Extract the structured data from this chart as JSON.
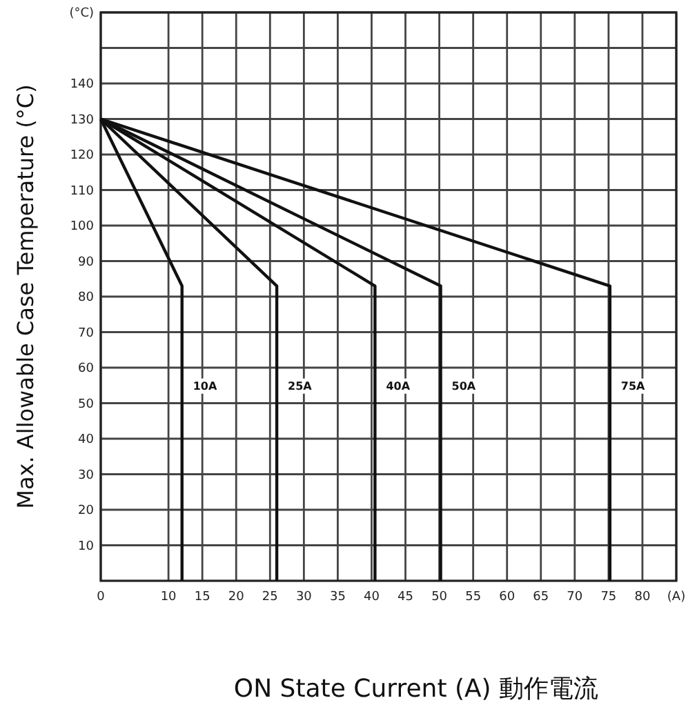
{
  "chart_data": {
    "type": "line",
    "xlabel": "ON State Current (A)  動作電流",
    "ylabel": "Max. Allowable Case Temperature (°C)",
    "xlim": [
      0,
      85
    ],
    "ylim": [
      0,
      160
    ],
    "xticks": [
      0,
      10,
      15,
      20,
      25,
      30,
      35,
      40,
      45,
      50,
      55,
      60,
      65,
      70,
      75,
      80,
      {
        "value": 85,
        "label": "(A)"
      }
    ],
    "yticks": [
      10,
      20,
      30,
      40,
      50,
      60,
      70,
      80,
      90,
      100,
      110,
      120,
      130,
      140,
      {
        "value": 150,
        "label": null
      },
      {
        "value": 160,
        "label": "(°C)"
      }
    ],
    "grid": true,
    "legend": false,
    "marker": "none",
    "line_style": "solid",
    "series": [
      {
        "name": "10A",
        "color": "#111111",
        "x": [
          0,
          12,
          12
        ],
        "values": [
          130,
          83,
          0
        ]
      },
      {
        "name": "25A",
        "color": "#111111",
        "x": [
          0,
          26,
          26
        ],
        "values": [
          130,
          83,
          0
        ]
      },
      {
        "name": "40A",
        "color": "#111111",
        "x": [
          0,
          40.5,
          40.5
        ],
        "values": [
          130,
          83,
          0
        ]
      },
      {
        "name": "50A",
        "color": "#111111",
        "x": [
          0,
          50.2,
          50.2
        ],
        "values": [
          130,
          83,
          0
        ]
      },
      {
        "name": "75A",
        "color": "#111111",
        "x": [
          0,
          75.2,
          75.2
        ],
        "values": [
          130,
          83,
          0
        ]
      }
    ]
  }
}
